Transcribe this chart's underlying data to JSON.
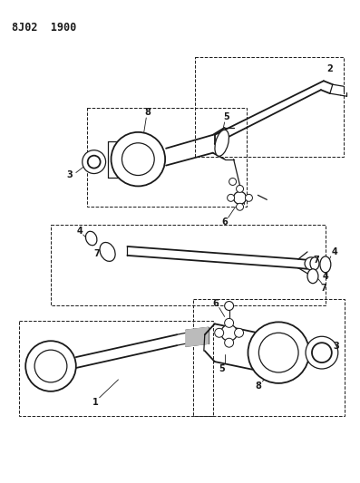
{
  "title": "8J02  1900",
  "bg_color": "#ffffff",
  "line_color": "#1a1a1a",
  "title_fontsize": 8.5,
  "label_fontsize": 7,
  "fig_width": 3.97,
  "fig_height": 5.33,
  "dpi": 100
}
